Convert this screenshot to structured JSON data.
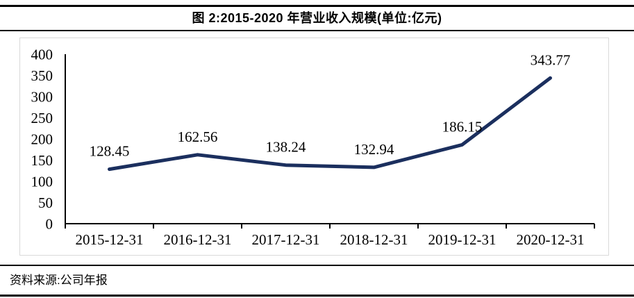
{
  "header": {
    "title": "图 2:2015-2020 年营业收入规模(单位:亿元)"
  },
  "footer": {
    "source": "资料来源:公司年报"
  },
  "chart_data": {
    "type": "line",
    "title": "图 2:2015-2020 年营业收入规模(单位:亿元)",
    "unit": "亿元",
    "categories": [
      "2015-12-31",
      "2016-12-31",
      "2017-12-31",
      "2018-12-31",
      "2019-12-31",
      "2020-12-31"
    ],
    "values": [
      128.45,
      162.56,
      138.24,
      132.94,
      186.15,
      343.77
    ],
    "data_labels": [
      "128.45",
      "162.56",
      "138.24",
      "132.94",
      "186.15",
      "343.77"
    ],
    "ylim": [
      0,
      400
    ],
    "yticks": [
      0,
      50,
      100,
      150,
      200,
      250,
      300,
      350,
      400
    ],
    "xlabel": "",
    "ylabel": "",
    "grid": false,
    "legend": "none",
    "line_color": "#1b2f5e",
    "axis_color": "#000000",
    "label_color": "#000000",
    "frame_border_color": "#d9d9d9"
  }
}
